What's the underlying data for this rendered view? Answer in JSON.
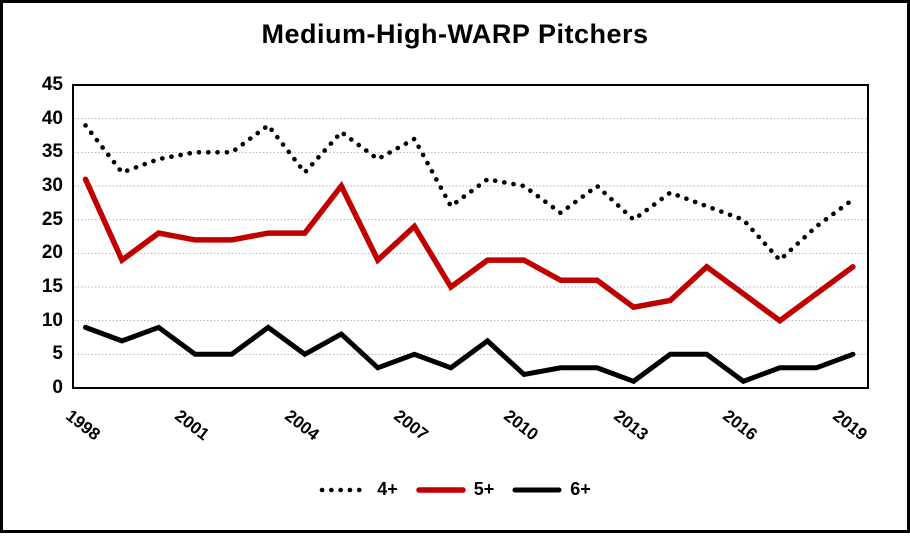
{
  "title": "Medium-High-WARP Pitchers",
  "colors": {
    "accent_red": "#C00000",
    "line_black": "#000000",
    "gridline": "#b3b3b3",
    "border": "#000000"
  },
  "y_axis": {
    "tick_labels": [
      "0",
      "5",
      "10",
      "15",
      "20",
      "25",
      "30",
      "35",
      "40",
      "45"
    ],
    "min": 0,
    "max": 45,
    "step": 5
  },
  "x_axis": {
    "tick_labels": [
      "1998",
      "2001",
      "2004",
      "2007",
      "2010",
      "2013",
      "2016",
      "2019"
    ],
    "label_interval": 3
  },
  "legend": {
    "entries": [
      "4+",
      "5+",
      "6+"
    ]
  },
  "chart_data": {
    "type": "line",
    "title": "Medium-High-WARP Pitchers",
    "xlabel": "",
    "ylabel": "",
    "ylim": [
      0,
      45
    ],
    "grid": "horizontal-dotted",
    "legend_position": "bottom-center",
    "categories": [
      1998,
      1999,
      2000,
      2001,
      2002,
      2003,
      2004,
      2005,
      2006,
      2007,
      2008,
      2009,
      2010,
      2011,
      2012,
      2013,
      2014,
      2015,
      2016,
      2017,
      2018,
      2019
    ],
    "series": [
      {
        "name": "4+",
        "style": "dotted",
        "color": "#000000",
        "values": [
          39,
          32,
          34,
          35,
          35,
          39,
          32,
          38,
          34,
          37,
          27,
          31,
          30,
          26,
          30,
          25,
          29,
          27,
          25,
          19,
          24,
          28
        ]
      },
      {
        "name": "5+",
        "style": "solid",
        "color": "#C00000",
        "values": [
          31,
          19,
          23,
          22,
          22,
          23,
          23,
          30,
          19,
          24,
          15,
          19,
          19,
          16,
          16,
          12,
          13,
          18,
          14,
          10,
          14,
          18
        ]
      },
      {
        "name": "6+",
        "style": "solid",
        "color": "#000000",
        "values": [
          9,
          7,
          9,
          5,
          5,
          9,
          5,
          8,
          3,
          5,
          3,
          7,
          2,
          3,
          3,
          1,
          5,
          5,
          1,
          3,
          3,
          5
        ]
      }
    ]
  }
}
